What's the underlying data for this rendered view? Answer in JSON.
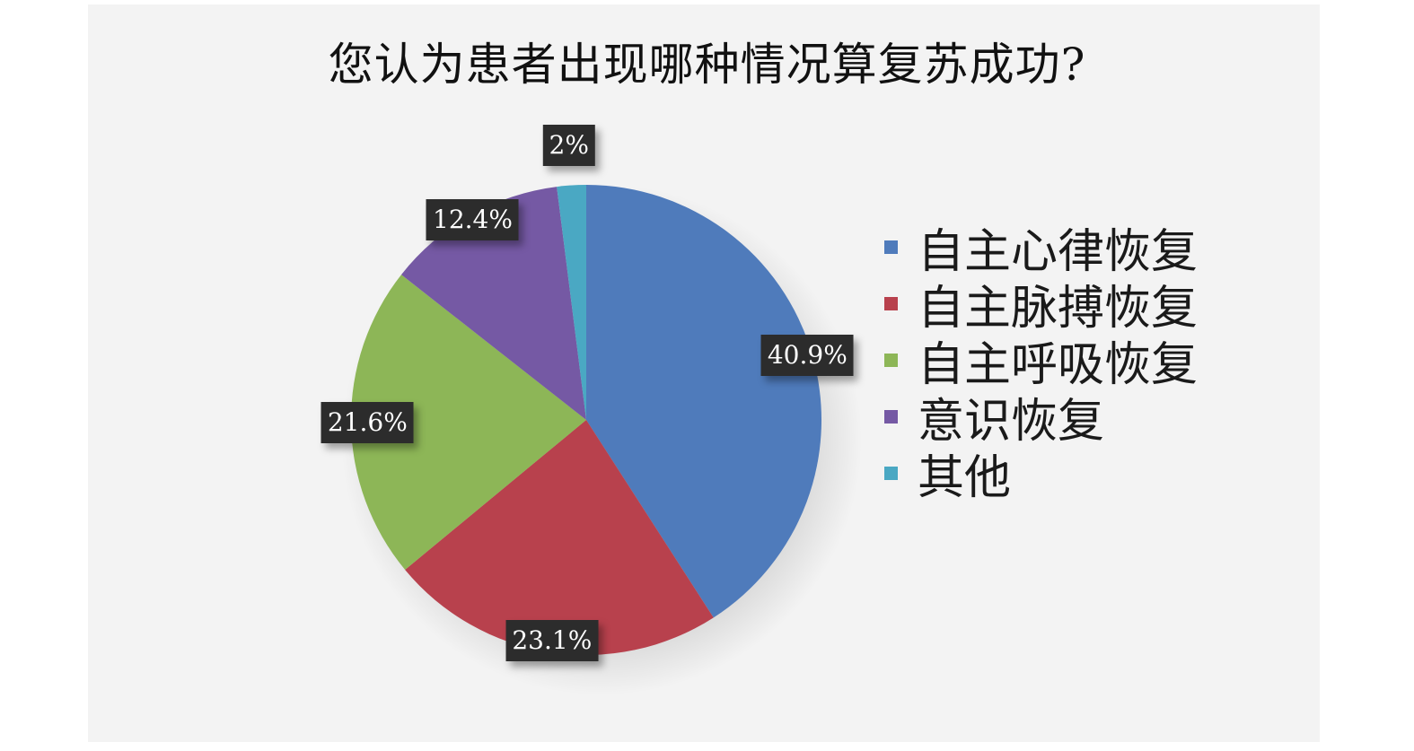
{
  "chart_data": {
    "type": "pie",
    "title": "您认为患者出现哪种情况算复苏成功?",
    "categories": [
      "自主心律恢复",
      "自主脉搏恢复",
      "自主呼吸恢复",
      "意识恢复",
      "其他"
    ],
    "values": [
      40.9,
      23.1,
      21.6,
      12.4,
      2
    ],
    "labels": [
      "40.9%",
      "23.1%",
      "21.6%",
      "12.4%",
      "2%"
    ],
    "colors": [
      "#4f7bbb",
      "#b8414d",
      "#8db657",
      "#7559a4",
      "#4aa8c3"
    ],
    "legend_position": "right"
  }
}
